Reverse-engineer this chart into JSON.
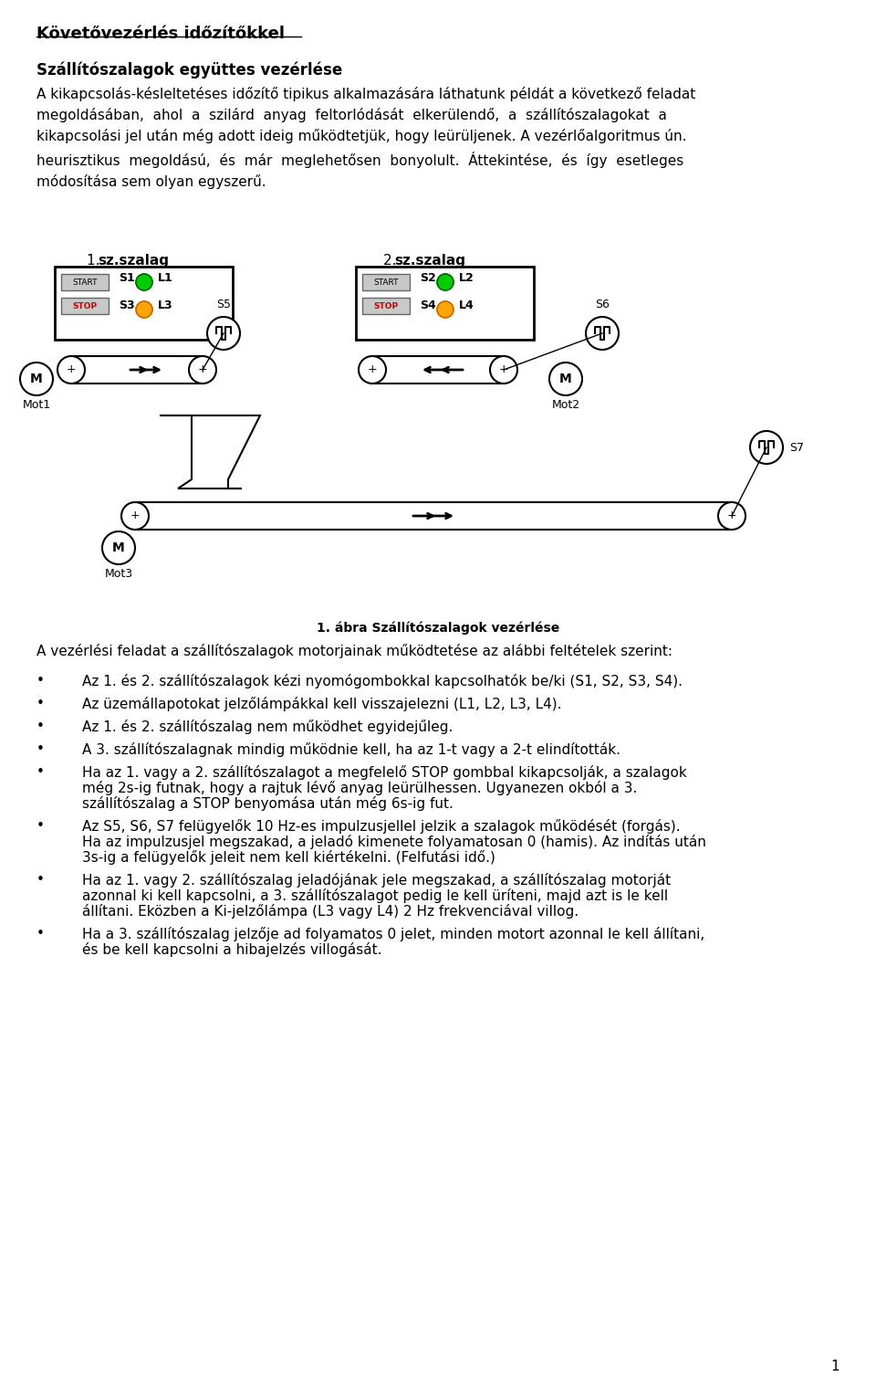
{
  "title": "Követővezérlés időzítőkkel",
  "subtitle": "Szállítószalagok együttes vezérlése",
  "body_text": "A kikapcsolás-késleltetéses időzítő tipikus alkalmazására láthatunk példát a következő feladat megoldásában, ahol a szilárd anyag feltorlódását elkerülendő, a szállítószalagokat a kikapcsolási jel után még adott ideig működtetjük, hogy leürüljenek. A vezérlőalgoritmus ún. heurisztikus megoldású, és már meglehetősen bonyolult. Áttekintése, és így esetleges módosítása sem olyan egyszerű.",
  "figure_caption": "1. ábra Szállítószalagok vezérlése",
  "intro_text": "A vezérlési feladat a szállítószalagok motorjainak működtetése az alábbi feltételek szerint:",
  "bullet_points": [
    "Az 1. és 2. szállítószalagok kézi nyomógombokkal kapcsolhatók be/ki (\\textbf{S1, S2, S3, S4}).",
    "Az üzemállapotokat jelzőlámpákkal kell visszajelezni (\\textbf{L1, L2, L3, L4}).",
    "Az 1. és 2. szállítószalag nem működhet egyidejűleg.",
    "A 3. szállítószalagnak mindig működnie kell, ha az 1-t vagy a 2-t elindították.",
    "Ha az 1. vagy a 2. szállítószalagot a megfelelő \\textbf{STOP} gombbal kikapcsolják, a szalagok még 2s-ig futnak, hogy a rajtuk lévő anyag leürülhessen. Ugyanezen okból a 3. szállítószalag a \\textbf{STOP} benyomása után még 6s-ig fut.",
    "Az \\textbf{S5, S6, S7} felügyelők 10 Hz-es impulzusjellel jelzik a szalagok működését (forgás). Ha az impulzusjel megszakad, a jeladó kimenete folyamatosan 0 (hamis). Az indítás után 3s-ig a felügyelők jeleit nem kell kiértékelni. (Felfutási idő.)",
    "Ha az 1. vagy 2. szállítószalag jeladójának jele megszakad, a szállítószalag motorját azonnal ki kell kapcsolni, a 3. szállítószalagot pedig le kell üríteni, majd azt is le kell állítani. Eközben a Ki-jelzőlámpa (\\textbf{L3} vagy \\textbf{L4}) 2 Hz frekvenciával villog.",
    "Ha a 3. szállítószalag jelzője ad folyamatos 0 jelet, minden motort azonnal le kell állítani, és be kell kapcsolni a hibajelzés villogását."
  ],
  "page_number": "1",
  "bg_color": "#ffffff",
  "text_color": "#000000",
  "diagram": {
    "szalag1_label": "1. sz.szalag",
    "szalag2_label": "2. sz.szalag",
    "start1": "START",
    "s1": "S1",
    "l1": "L1",
    "stop1": "STOP",
    "s3": "S3",
    "l3": "L3",
    "s5": "S5",
    "start2": "START",
    "s2": "S2",
    "l2": "L2",
    "stop2": "STOP",
    "s4": "S4",
    "l4": "L4",
    "s6": "S6",
    "s7": "S7",
    "mot1": "Mot1",
    "mot2": "Mot2",
    "mot3": "Mot3"
  }
}
